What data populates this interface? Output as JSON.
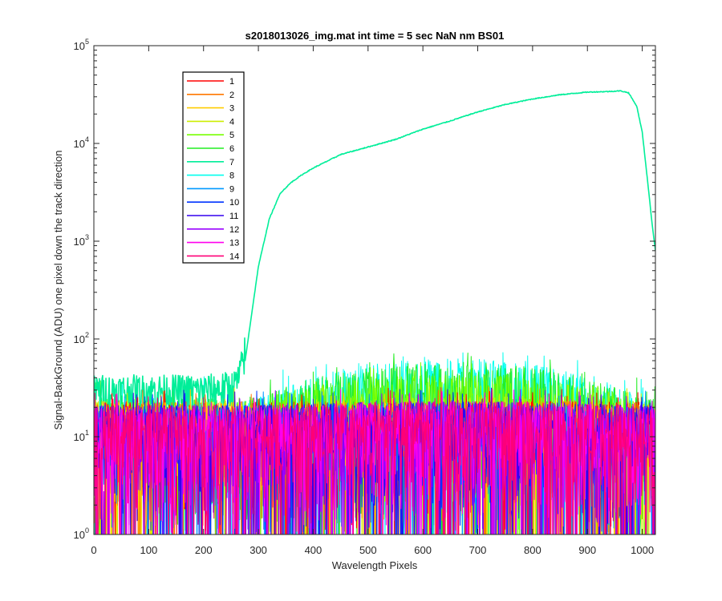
{
  "chart_data": {
    "type": "line",
    "title": "s2018013026_img.mat int time = 5 sec  NaN nm BS01",
    "xlabel": "Wavelength Pixels",
    "ylabel": "Signal-BackGround (ADU) one pixel down the track direction",
    "xlim": [
      0,
      1024
    ],
    "ylim": [
      1,
      100000
    ],
    "yscale": "log",
    "xticks": [
      0,
      100,
      200,
      300,
      400,
      500,
      600,
      700,
      800,
      900,
      1000
    ],
    "yticks": [
      {
        "base": "10",
        "exp": "0",
        "value": 1
      },
      {
        "base": "10",
        "exp": "1",
        "value": 10
      },
      {
        "base": "10",
        "exp": "2",
        "value": 100
      },
      {
        "base": "10",
        "exp": "3",
        "value": 1000
      },
      {
        "base": "10",
        "exp": "4",
        "value": 10000
      },
      {
        "base": "10",
        "exp": "5",
        "value": 100000
      }
    ],
    "legend_position": "upper-left",
    "grid": false,
    "series": [
      {
        "name": "1",
        "color": "#ff0000",
        "noise_level": [
          20,
          20
        ],
        "peak": 12
      },
      {
        "name": "2",
        "color": "#ff7700",
        "noise_level": [
          20,
          20
        ],
        "peak": 12
      },
      {
        "name": "3",
        "color": "#ffcc00",
        "noise_level": [
          20,
          20
        ],
        "peak": 12
      },
      {
        "name": "4",
        "color": "#ccee00",
        "noise_level": [
          20,
          24
        ],
        "peak": 13
      },
      {
        "name": "5",
        "color": "#77ff00",
        "noise_level": [
          22,
          40
        ],
        "peak": 18
      },
      {
        "name": "6",
        "color": "#22ee22",
        "noise_level": [
          22,
          55
        ],
        "peak": 20
      },
      {
        "name": "7",
        "color": "#00ee99",
        "signal": [
          [
            0,
            22
          ],
          [
            100,
            22
          ],
          [
            200,
            22
          ],
          [
            255,
            24
          ],
          [
            265,
            30
          ],
          [
            275,
            55
          ],
          [
            285,
            140
          ],
          [
            300,
            550
          ],
          [
            320,
            1700
          ],
          [
            340,
            3100
          ],
          [
            360,
            4000
          ],
          [
            380,
            4800
          ],
          [
            400,
            5600
          ],
          [
            450,
            7700
          ],
          [
            500,
            9200
          ],
          [
            550,
            11000
          ],
          [
            600,
            14000
          ],
          [
            650,
            17000
          ],
          [
            700,
            21000
          ],
          [
            750,
            25000
          ],
          [
            800,
            28500
          ],
          [
            850,
            31500
          ],
          [
            900,
            33500
          ],
          [
            940,
            34000
          ],
          [
            960,
            34500
          ],
          [
            975,
            33000
          ],
          [
            990,
            24000
          ],
          [
            1000,
            13000
          ],
          [
            1010,
            4000
          ],
          [
            1018,
            1500
          ],
          [
            1024,
            800
          ]
        ]
      },
      {
        "name": "8",
        "color": "#00ffee",
        "noise_level": [
          22,
          60
        ],
        "peak": 20
      },
      {
        "name": "9",
        "color": "#0099ff",
        "noise_level": [
          18,
          20
        ],
        "peak": 12
      },
      {
        "name": "10",
        "color": "#0033ff",
        "noise_level": [
          18,
          20
        ],
        "peak": 13
      },
      {
        "name": "11",
        "color": "#3300ee",
        "noise_level": [
          18,
          20
        ],
        "peak": 12
      },
      {
        "name": "12",
        "color": "#9900ff",
        "noise_level": [
          18,
          20
        ],
        "peak": 12
      },
      {
        "name": "13",
        "color": "#ff00ee",
        "noise_level": [
          18,
          20
        ],
        "peak": 12
      },
      {
        "name": "14",
        "color": "#ff0077",
        "noise_level": [
          18,
          20
        ],
        "peak": 12
      }
    ]
  }
}
